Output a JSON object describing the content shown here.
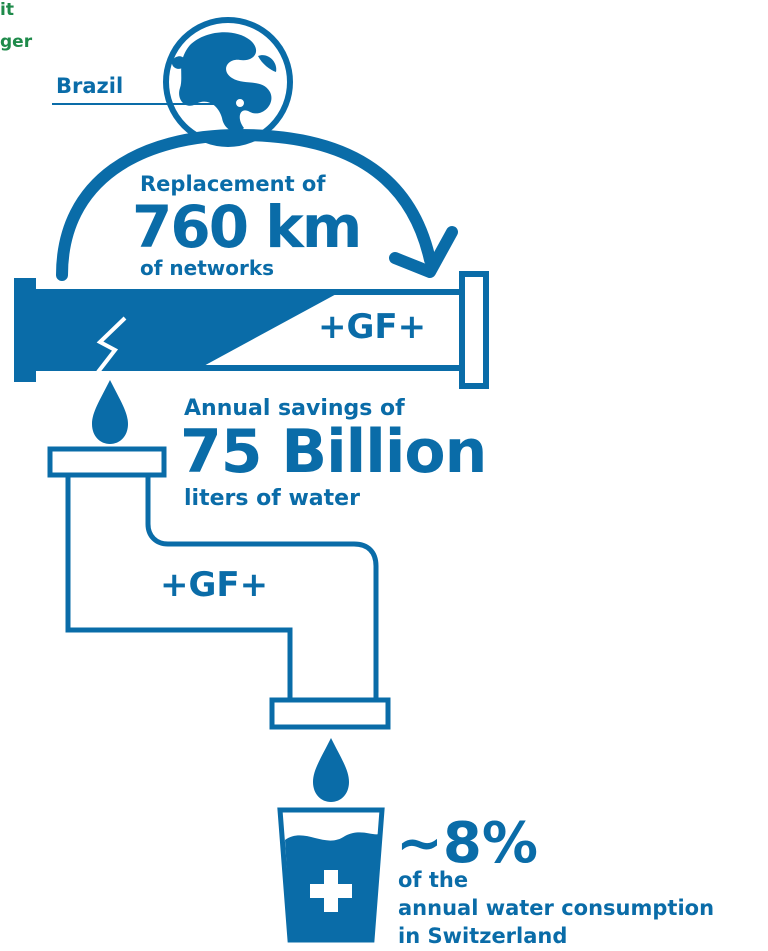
{
  "colors": {
    "primary": "#0a6ca8",
    "green": "#1e8a4a",
    "white": "#ffffff"
  },
  "corner_text": {
    "line1": "it",
    "line2": "ger"
  },
  "brazil_label": "Brazil",
  "replacement": {
    "intro": "Replacement of",
    "value": "760 km",
    "outro": "of networks"
  },
  "pipe_logo": "+GF+",
  "faucet_logo": "+GF+",
  "savings": {
    "intro": "Annual savings of",
    "value": "75 Billion",
    "outro": "liters of water"
  },
  "consumption": {
    "value": "~8%",
    "line1": "of the",
    "line2": "annual water consumption",
    "line3": "in Switzerland"
  },
  "icons": [
    "globe-icon",
    "arrow-icon",
    "pipe-icon",
    "water-drop-icon",
    "faucet-icon",
    "water-glass-icon",
    "plus-icon"
  ]
}
